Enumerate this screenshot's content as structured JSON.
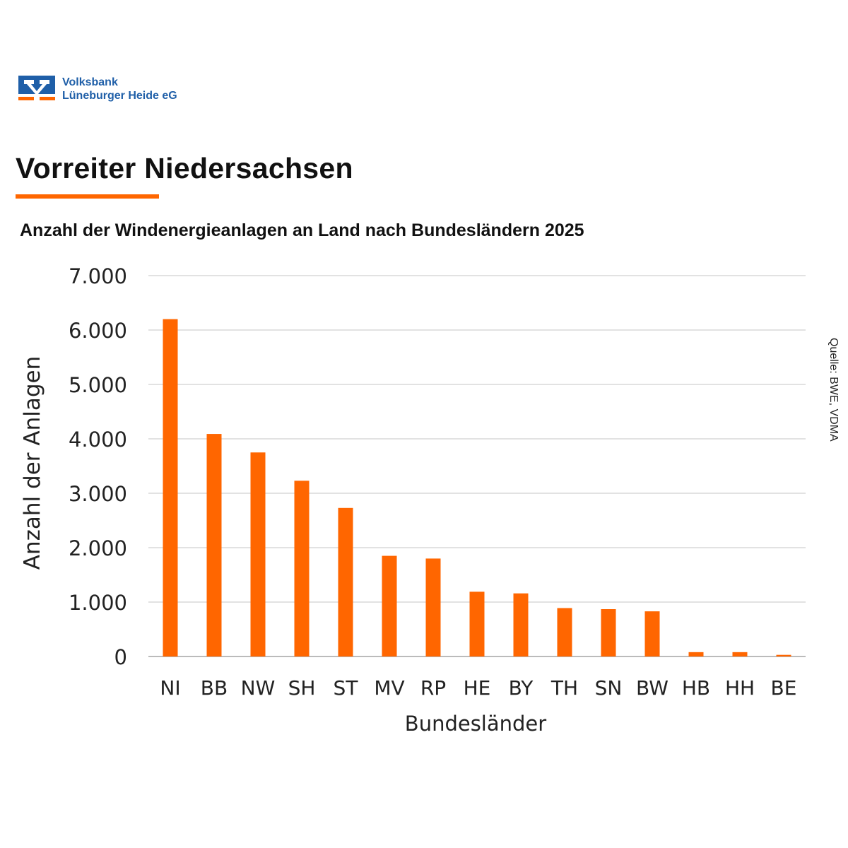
{
  "brand": {
    "name_line1": "Volksbank",
    "name_line2": "Lüneburger Heide eG",
    "colors": {
      "blue": "#1f5fa8",
      "orange": "#ff6600"
    }
  },
  "header": {
    "title": "Vorreiter Niedersachsen",
    "subtitle": "Anzahl der Windenergieanlagen an Land nach Bundesländern 2025"
  },
  "source": "Quelle: BWE, VDMA",
  "chart_data": {
    "type": "bar",
    "title": "Anzahl der Windenergieanlagen an Land nach Bundesländern 2025",
    "xlabel": "Bundesländer",
    "ylabel": "Anzahl der Anlagen",
    "categories": [
      "NI",
      "BB",
      "NW",
      "SH",
      "ST",
      "MV",
      "RP",
      "HE",
      "BY",
      "TH",
      "SN",
      "BW",
      "HB",
      "HH",
      "BE"
    ],
    "values": [
      6200,
      4090,
      3750,
      3230,
      2730,
      1850,
      1800,
      1190,
      1160,
      890,
      870,
      830,
      80,
      80,
      30
    ],
    "ylim": [
      0,
      7000
    ],
    "yticks": [
      "0",
      "1.000",
      "2.000",
      "3.000",
      "4.000",
      "5.000",
      "6.000",
      "7.000"
    ],
    "grid": true,
    "bar_color": "#ff6600",
    "legend": "none"
  }
}
